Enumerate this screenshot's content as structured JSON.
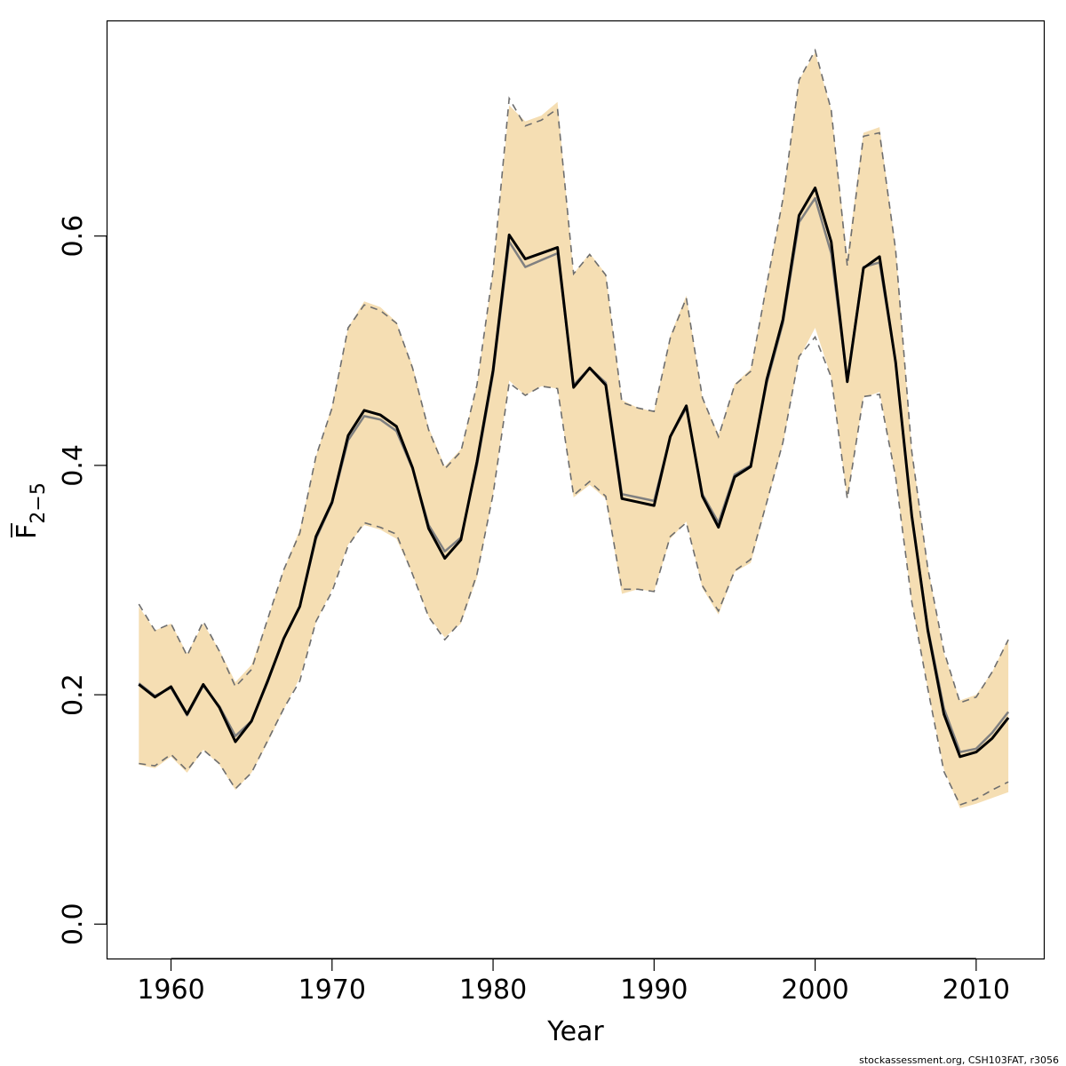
{
  "chart_data": {
    "type": "line",
    "xlabel": "Year",
    "ylabel": {
      "main": "F",
      "sub": "2−5"
    },
    "xlim": [
      1956,
      2014.2
    ],
    "ylim": [
      -0.03,
      0.788
    ],
    "x_ticks": [
      1960,
      1970,
      1980,
      1990,
      2000,
      2010
    ],
    "x_tick_labels": [
      "1960",
      "1970",
      "1980",
      "1990",
      "2000",
      "2010"
    ],
    "y_ticks": [
      0.0,
      0.2,
      0.4,
      0.6
    ],
    "y_tick_labels": [
      "0.0",
      "0.2",
      "0.4",
      "0.6"
    ],
    "grid": false,
    "legend": "none",
    "x": [
      1958,
      1959,
      1960,
      1961,
      1962,
      1963,
      1964,
      1965,
      1966,
      1967,
      1968,
      1969,
      1970,
      1971,
      1972,
      1973,
      1974,
      1975,
      1976,
      1977,
      1978,
      1979,
      1980,
      1981,
      1982,
      1983,
      1984,
      1985,
      1986,
      1987,
      1988,
      1989,
      1990,
      1991,
      1992,
      1993,
      1994,
      1995,
      1996,
      1997,
      1998,
      1999,
      2000,
      2001,
      2002,
      2003,
      2004,
      2005,
      2006,
      2007,
      2008,
      2009,
      2010,
      2011,
      2012
    ],
    "band_upper": [
      0.277,
      0.256,
      0.262,
      0.236,
      0.262,
      0.239,
      0.211,
      0.226,
      0.266,
      0.309,
      0.344,
      0.408,
      0.452,
      0.52,
      0.543,
      0.538,
      0.525,
      0.487,
      0.433,
      0.399,
      0.414,
      0.47,
      0.57,
      0.714,
      0.7,
      0.705,
      0.717,
      0.567,
      0.585,
      0.567,
      0.457,
      0.45,
      0.447,
      0.513,
      0.548,
      0.459,
      0.427,
      0.471,
      0.484,
      0.56,
      0.632,
      0.736,
      0.76,
      0.71,
      0.582,
      0.69,
      0.695,
      0.59,
      0.413,
      0.312,
      0.236,
      0.195,
      0.2,
      0.22,
      0.249
    ],
    "band_lower": [
      0.139,
      0.136,
      0.146,
      0.132,
      0.152,
      0.139,
      0.117,
      0.132,
      0.158,
      0.187,
      0.215,
      0.263,
      0.292,
      0.331,
      0.348,
      0.344,
      0.336,
      0.305,
      0.268,
      0.25,
      0.262,
      0.302,
      0.375,
      0.474,
      0.461,
      0.469,
      0.467,
      0.372,
      0.383,
      0.371,
      0.288,
      0.292,
      0.29,
      0.336,
      0.351,
      0.293,
      0.27,
      0.307,
      0.315,
      0.366,
      0.418,
      0.493,
      0.52,
      0.477,
      0.371,
      0.459,
      0.464,
      0.39,
      0.281,
      0.205,
      0.135,
      0.101,
      0.105,
      0.11,
      0.115
    ],
    "dashed_upper": [
      0.279,
      0.256,
      0.262,
      0.234,
      0.264,
      0.238,
      0.207,
      0.222,
      0.266,
      0.309,
      0.341,
      0.408,
      0.45,
      0.52,
      0.54,
      0.535,
      0.524,
      0.485,
      0.431,
      0.397,
      0.412,
      0.47,
      0.57,
      0.72,
      0.696,
      0.701,
      0.711,
      0.567,
      0.584,
      0.566,
      0.455,
      0.45,
      0.447,
      0.511,
      0.546,
      0.459,
      0.425,
      0.47,
      0.482,
      0.558,
      0.632,
      0.736,
      0.762,
      0.71,
      0.574,
      0.687,
      0.69,
      0.588,
      0.412,
      0.31,
      0.238,
      0.193,
      0.198,
      0.22,
      0.248
    ],
    "dashed_lower": [
      0.14,
      0.138,
      0.148,
      0.134,
      0.152,
      0.14,
      0.118,
      0.132,
      0.16,
      0.188,
      0.212,
      0.264,
      0.29,
      0.33,
      0.35,
      0.346,
      0.34,
      0.305,
      0.268,
      0.248,
      0.264,
      0.305,
      0.375,
      0.472,
      0.461,
      0.469,
      0.467,
      0.374,
      0.386,
      0.373,
      0.292,
      0.292,
      0.29,
      0.338,
      0.35,
      0.295,
      0.273,
      0.308,
      0.318,
      0.368,
      0.42,
      0.495,
      0.512,
      0.477,
      0.371,
      0.46,
      0.462,
      0.39,
      0.281,
      0.205,
      0.133,
      0.104,
      0.109,
      0.117,
      0.124
    ],
    "series": [
      {
        "values": [
          0.209,
          0.198,
          0.207,
          0.183,
          0.209,
          0.189,
          0.159,
          0.177,
          0.212,
          0.249,
          0.277,
          0.338,
          0.368,
          0.426,
          0.448,
          0.444,
          0.434,
          0.398,
          0.345,
          0.319,
          0.335,
          0.403,
          0.483,
          0.601,
          0.58,
          0.585,
          0.59,
          0.468,
          0.485,
          0.47,
          0.371,
          0.368,
          0.365,
          0.425,
          0.452,
          0.373,
          0.346,
          0.39,
          0.399,
          0.475,
          0.527,
          0.618,
          0.642,
          0.595,
          0.473,
          0.572,
          0.582,
          0.49,
          0.356,
          0.256,
          0.183,
          0.146,
          0.15,
          0.162,
          0.18
        ],
        "color": "#000000",
        "width": 3
      },
      {
        "values": [
          0.21,
          0.199,
          0.206,
          0.182,
          0.208,
          0.19,
          0.164,
          0.177,
          0.211,
          0.249,
          0.277,
          0.336,
          0.367,
          0.422,
          0.443,
          0.44,
          0.43,
          0.397,
          0.348,
          0.325,
          0.337,
          0.4,
          0.48,
          0.595,
          0.573,
          0.579,
          0.585,
          0.47,
          0.485,
          0.472,
          0.375,
          0.372,
          0.369,
          0.425,
          0.45,
          0.375,
          0.35,
          0.392,
          0.4,
          0.472,
          0.524,
          0.612,
          0.633,
          0.585,
          0.474,
          0.573,
          0.577,
          0.49,
          0.356,
          0.258,
          0.188,
          0.15,
          0.153,
          0.167,
          0.185
        ],
        "color": "#808080",
        "width": 2.5
      }
    ],
    "band_color": "#f5deb3",
    "dash_color": "#6e6e6e"
  },
  "credit": "stockassessment.org, CSH103FAT, r3056"
}
